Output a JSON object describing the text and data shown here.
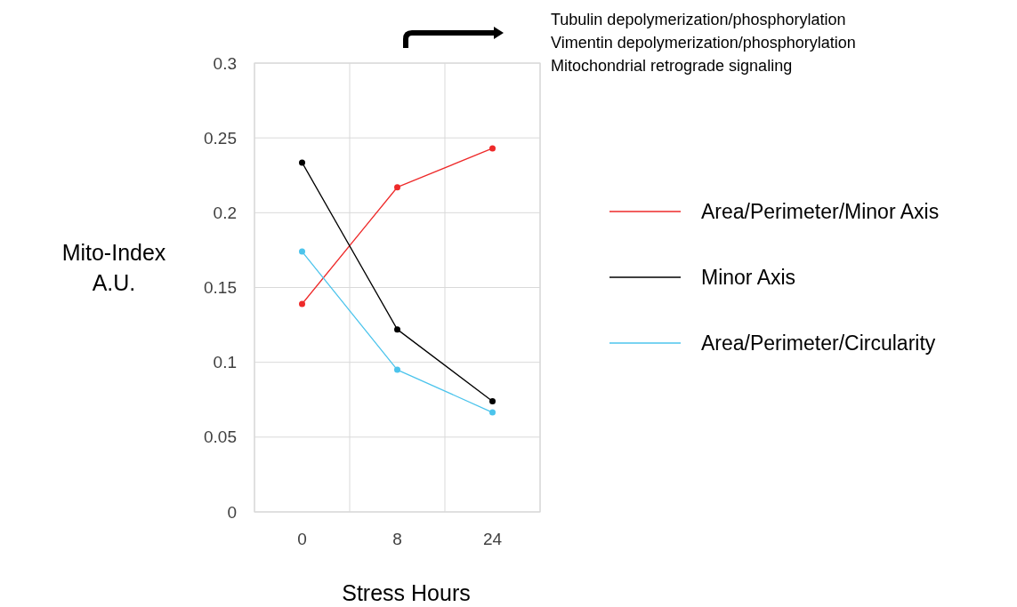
{
  "chart_data": {
    "type": "line",
    "xlabel": "Stress Hours",
    "ylabel": "Mito-Index\nA.U.",
    "categories": [
      "0",
      "8",
      "24"
    ],
    "series": [
      {
        "name": "Area/Perimeter/Minor Axis",
        "color": "#ee2a2a",
        "values": [
          0.139,
          0.217,
          0.243
        ]
      },
      {
        "name": "Minor Axis",
        "color": "#000000",
        "values": [
          0.2335,
          0.122,
          0.074
        ]
      },
      {
        "name": "Area/Perimeter/Circularity",
        "color": "#4cc4ec",
        "values": [
          0.174,
          0.095,
          0.0665
        ]
      }
    ],
    "ylim": [
      0,
      0.3
    ],
    "yticks": [
      0,
      0.05,
      0.1,
      0.15,
      0.2,
      0.25,
      0.3
    ],
    "grid": true,
    "legend": "right",
    "marker": "circle",
    "line_style": "solid",
    "annotations": [
      "Tubulin depolymerization/phosphorylation",
      "Vimentin depolymerization/phosphorylation",
      "Mitochondrial retrograde signaling"
    ]
  }
}
